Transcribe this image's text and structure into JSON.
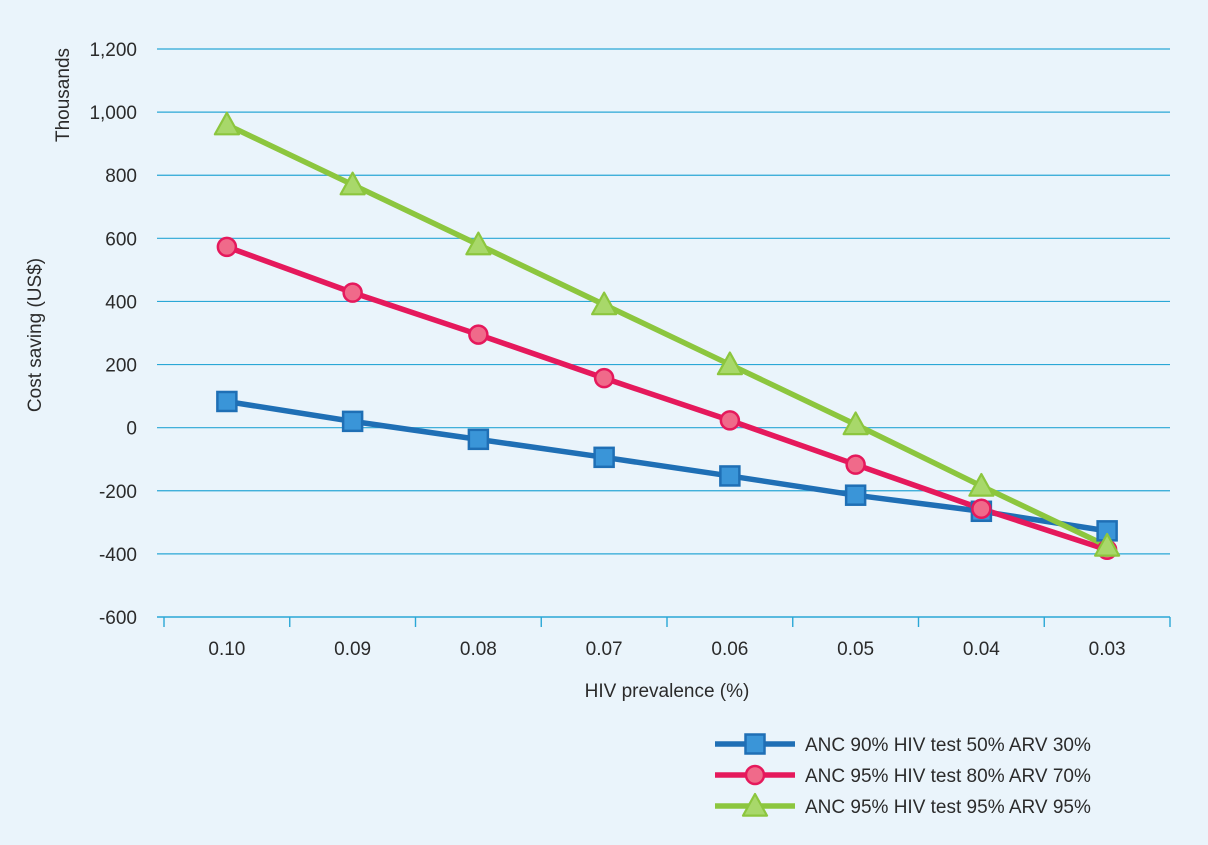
{
  "chart_data": {
    "type": "line",
    "categories": [
      "0.10",
      "0.09",
      "0.08",
      "0.07",
      "0.06",
      "0.05",
      "0.04",
      "0.03"
    ],
    "xlabel": "HIV prevalence (%)",
    "ylabel": "Cost saving (US$)",
    "yunit_label": "Thousands",
    "ylim": [
      -600,
      1200
    ],
    "yticks": [
      -600,
      -400,
      -200,
      0,
      200,
      400,
      600,
      800,
      1000,
      1200
    ],
    "ytick_labels": [
      "-600",
      "-400",
      "-200",
      "0",
      "200",
      "400",
      "600",
      "800",
      "1,000",
      "1,200"
    ],
    "grid": "horizontal",
    "legend_position": "bottom-right",
    "series": [
      {
        "name": "ANC 90% HIV test 50% ARV 30%",
        "color": "#1f6fb5",
        "marker": "square",
        "values": [
          83,
          20,
          -37,
          -94,
          -153,
          -214,
          -265,
          -327
        ]
      },
      {
        "name": "ANC 95% HIV test 80% ARV 70%",
        "color": "#e5195c",
        "marker": "circle",
        "values": [
          573,
          428,
          295,
          157,
          23,
          -117,
          -257,
          -387
        ]
      },
      {
        "name": "ANC 95% HIV test 95% ARV 95%",
        "color": "#8cc63e",
        "marker": "triangle",
        "values": [
          960,
          770,
          580,
          390,
          200,
          10,
          -185,
          -375
        ]
      }
    ]
  }
}
